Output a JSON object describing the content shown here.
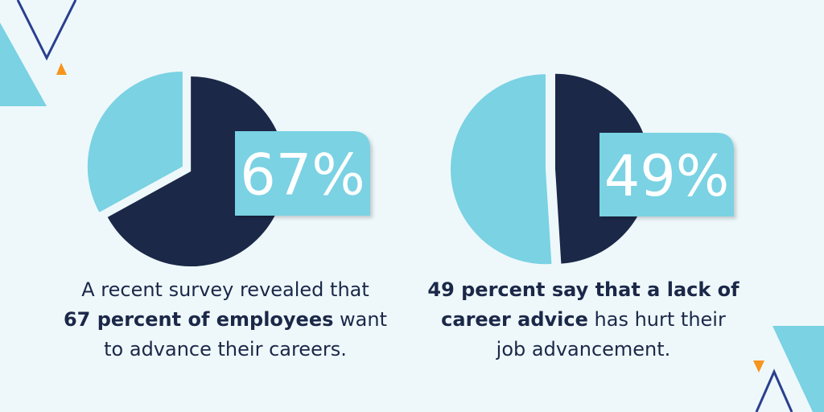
{
  "chart_data": [
    {
      "type": "pie",
      "values": [
        67,
        33
      ],
      "value_labels": [
        "67%",
        null
      ],
      "colors": [
        "#1b2848",
        "#7ad2e3"
      ],
      "caption": [
        [
          {
            "text": "A recent survey revealed that",
            "bold": false
          }
        ],
        [
          {
            "text": "67 percent of employees",
            "bold": true
          },
          {
            "text": " want",
            "bold": false
          }
        ],
        [
          {
            "text": "to advance their careers.",
            "bold": false
          }
        ]
      ]
    },
    {
      "type": "pie",
      "values": [
        49,
        51
      ],
      "value_labels": [
        "49%",
        null
      ],
      "colors": [
        "#1b2848",
        "#7ad2e3"
      ],
      "caption": [
        [
          {
            "text": "49 percent say that a lack of",
            "bold": true
          }
        ],
        [
          {
            "text": "career advice",
            "bold": true
          },
          {
            "text": " has hurt their",
            "bold": false
          }
        ],
        [
          {
            "text": "job advancement.",
            "bold": false
          }
        ]
      ]
    }
  ]
}
